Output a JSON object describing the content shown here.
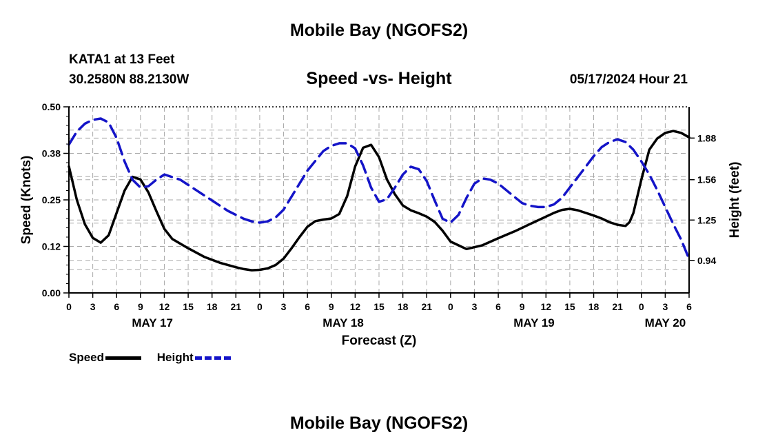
{
  "header": {
    "title": "Mobile Bay (NGOFS2)",
    "station": "KATA1 at 13 Feet",
    "coords": "30.2580N  88.2130W",
    "subtitle": "Speed -vs- Height",
    "datestamp": "05/17/2024 Hour 21"
  },
  "footer": {
    "title": "Mobile Bay (NGOFS2)"
  },
  "legend": {
    "speed": "Speed",
    "height": "Height"
  },
  "colors": {
    "speed": "#000000",
    "height": "#1414c8",
    "grid": "#a8a8a8"
  },
  "chart_data": {
    "type": "line",
    "title": "Speed -vs- Height",
    "xlabel": "Forecast (Z)",
    "ylabel_left": "Speed (Knots)",
    "ylabel_right": "Height (feet)",
    "x_unit": "hours since 00Z May 17",
    "xlim": [
      0,
      78
    ],
    "ylim_left": [
      0,
      0.5
    ],
    "ylim_right": [
      0.69,
      2.12
    ],
    "grid": true,
    "left_ticks": [
      {
        "value": 0,
        "label": "0.00"
      },
      {
        "value": 0.125,
        "label": "0.12"
      },
      {
        "value": 0.25,
        "label": "0.25"
      },
      {
        "value": 0.375,
        "label": "0.38"
      },
      {
        "value": 0.5,
        "label": "0.50"
      }
    ],
    "right_ticks": [
      {
        "value": 0.94,
        "label": "0.94"
      },
      {
        "value": 1.25,
        "label": "1.25"
      },
      {
        "value": 1.56,
        "label": "1.56"
      },
      {
        "value": 1.88,
        "label": "1.88"
      }
    ],
    "x_ticks": [
      {
        "value": 0,
        "label": "0"
      },
      {
        "value": 3,
        "label": "3"
      },
      {
        "value": 6,
        "label": "6"
      },
      {
        "value": 9,
        "label": "9"
      },
      {
        "value": 12,
        "label": "12"
      },
      {
        "value": 15,
        "label": "15"
      },
      {
        "value": 18,
        "label": "18"
      },
      {
        "value": 21,
        "label": "21"
      },
      {
        "value": 24,
        "label": "0"
      },
      {
        "value": 27,
        "label": "3"
      },
      {
        "value": 30,
        "label": "6"
      },
      {
        "value": 33,
        "label": "9"
      },
      {
        "value": 36,
        "label": "12"
      },
      {
        "value": 39,
        "label": "15"
      },
      {
        "value": 42,
        "label": "18"
      },
      {
        "value": 45,
        "label": "21"
      },
      {
        "value": 48,
        "label": "0"
      },
      {
        "value": 51,
        "label": "3"
      },
      {
        "value": 54,
        "label": "6"
      },
      {
        "value": 57,
        "label": "9"
      },
      {
        "value": 60,
        "label": "12"
      },
      {
        "value": 63,
        "label": "15"
      },
      {
        "value": 66,
        "label": "18"
      },
      {
        "value": 69,
        "label": "21"
      },
      {
        "value": 72,
        "label": "0"
      },
      {
        "value": 75,
        "label": "3"
      },
      {
        "value": 78,
        "label": "6"
      }
    ],
    "day_labels": [
      {
        "value": 10.5,
        "label": "MAY 17"
      },
      {
        "value": 34.5,
        "label": "MAY 18"
      },
      {
        "value": 58.5,
        "label": "MAY 19"
      },
      {
        "value": 75,
        "label": "MAY 20"
      }
    ],
    "series": [
      {
        "name": "Speed",
        "axis": "left",
        "style": "solid",
        "x": [
          0,
          1,
          2,
          3,
          4,
          5,
          6,
          7,
          8,
          9,
          10,
          11,
          12,
          13,
          15,
          17,
          19,
          21,
          22,
          23,
          24,
          25,
          26,
          27,
          28,
          29,
          30,
          31,
          32,
          33,
          34,
          35,
          36,
          37,
          38,
          39,
          40,
          41,
          42,
          43,
          44,
          45,
          46,
          47,
          48,
          50,
          52,
          54,
          56,
          58,
          60,
          61,
          62,
          63,
          64,
          65,
          66,
          67,
          68,
          69,
          70,
          70.5,
          71,
          72,
          73,
          74,
          75,
          76,
          77,
          78
        ],
        "y": [
          0.34,
          0.25,
          0.185,
          0.148,
          0.135,
          0.155,
          0.215,
          0.275,
          0.312,
          0.305,
          0.27,
          0.22,
          0.172,
          0.145,
          0.12,
          0.097,
          0.081,
          0.069,
          0.064,
          0.061,
          0.062,
          0.066,
          0.075,
          0.092,
          0.12,
          0.15,
          0.178,
          0.193,
          0.197,
          0.2,
          0.212,
          0.26,
          0.34,
          0.39,
          0.398,
          0.365,
          0.305,
          0.265,
          0.235,
          0.222,
          0.214,
          0.205,
          0.191,
          0.167,
          0.138,
          0.118,
          0.128,
          0.147,
          0.165,
          0.185,
          0.205,
          0.215,
          0.223,
          0.226,
          0.222,
          0.215,
          0.208,
          0.2,
          0.19,
          0.183,
          0.18,
          0.19,
          0.215,
          0.305,
          0.385,
          0.415,
          0.43,
          0.435,
          0.43,
          0.418
        ]
      },
      {
        "name": "Height",
        "axis": "right",
        "style": "dashed",
        "x": [
          0,
          1,
          2,
          3,
          4,
          5,
          6,
          7,
          8,
          9,
          10,
          11,
          12,
          14,
          16,
          18,
          20,
          22,
          23,
          24,
          25,
          26,
          27,
          28,
          30,
          32,
          33,
          34,
          35,
          36,
          37,
          38,
          39,
          40,
          41,
          42,
          43,
          44,
          45,
          46,
          47,
          48,
          49,
          50,
          51,
          52,
          53,
          54,
          55,
          56,
          57,
          58,
          59,
          60,
          61,
          62,
          63,
          64,
          65,
          66,
          67,
          68,
          69,
          70,
          71,
          72,
          73,
          74,
          75,
          76,
          77,
          78
        ],
        "y": [
          1.83,
          1.93,
          1.99,
          2.02,
          2.03,
          2.0,
          1.88,
          1.7,
          1.56,
          1.5,
          1.51,
          1.56,
          1.6,
          1.56,
          1.48,
          1.4,
          1.32,
          1.26,
          1.24,
          1.23,
          1.24,
          1.27,
          1.33,
          1.43,
          1.63,
          1.78,
          1.82,
          1.84,
          1.84,
          1.8,
          1.67,
          1.5,
          1.39,
          1.41,
          1.5,
          1.6,
          1.66,
          1.64,
          1.55,
          1.4,
          1.26,
          1.23,
          1.29,
          1.42,
          1.53,
          1.57,
          1.56,
          1.53,
          1.48,
          1.43,
          1.38,
          1.36,
          1.35,
          1.35,
          1.37,
          1.42,
          1.5,
          1.58,
          1.66,
          1.74,
          1.81,
          1.85,
          1.87,
          1.85,
          1.79,
          1.7,
          1.6,
          1.48,
          1.35,
          1.22,
          1.1,
          0.95
        ]
      }
    ]
  }
}
